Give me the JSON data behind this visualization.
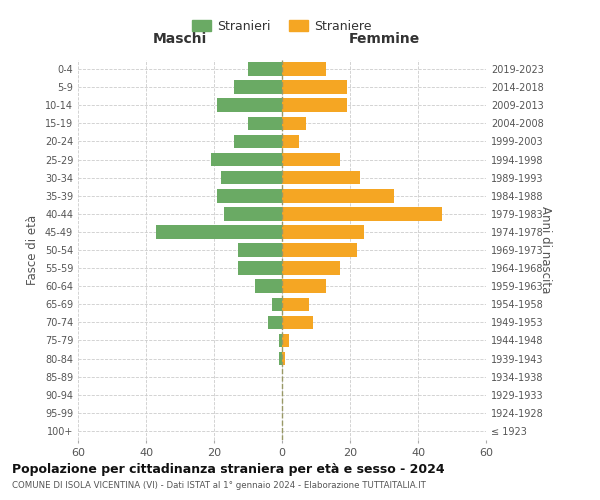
{
  "age_groups": [
    "100+",
    "95-99",
    "90-94",
    "85-89",
    "80-84",
    "75-79",
    "70-74",
    "65-69",
    "60-64",
    "55-59",
    "50-54",
    "45-49",
    "40-44",
    "35-39",
    "30-34",
    "25-29",
    "20-24",
    "15-19",
    "10-14",
    "5-9",
    "0-4"
  ],
  "birth_years": [
    "≤ 1923",
    "1924-1928",
    "1929-1933",
    "1934-1938",
    "1939-1943",
    "1944-1948",
    "1949-1953",
    "1954-1958",
    "1959-1963",
    "1964-1968",
    "1969-1973",
    "1974-1978",
    "1979-1983",
    "1984-1988",
    "1989-1993",
    "1994-1998",
    "1999-2003",
    "2004-2008",
    "2009-2013",
    "2014-2018",
    "2019-2023"
  ],
  "males": [
    0,
    0,
    0,
    0,
    1,
    1,
    4,
    3,
    8,
    13,
    13,
    37,
    17,
    19,
    18,
    21,
    14,
    10,
    19,
    14,
    10
  ],
  "females": [
    0,
    0,
    0,
    0,
    1,
    2,
    9,
    8,
    13,
    17,
    22,
    24,
    47,
    33,
    23,
    17,
    5,
    7,
    19,
    19,
    13
  ],
  "male_color": "#6aaa64",
  "female_color": "#f5a623",
  "male_label": "Stranieri",
  "female_label": "Straniere",
  "title": "Popolazione per cittadinanza straniera per età e sesso - 2024",
  "subtitle": "COMUNE DI ISOLA VICENTINA (VI) - Dati ISTAT al 1° gennaio 2024 - Elaborazione TUTTAITALIA.IT",
  "left_header": "Maschi",
  "right_header": "Femmine",
  "left_yaxis_label": "Fasce di età",
  "right_yaxis_label": "Anni di nascita",
  "xlim": 60,
  "background_color": "#ffffff",
  "grid_color": "#cccccc"
}
